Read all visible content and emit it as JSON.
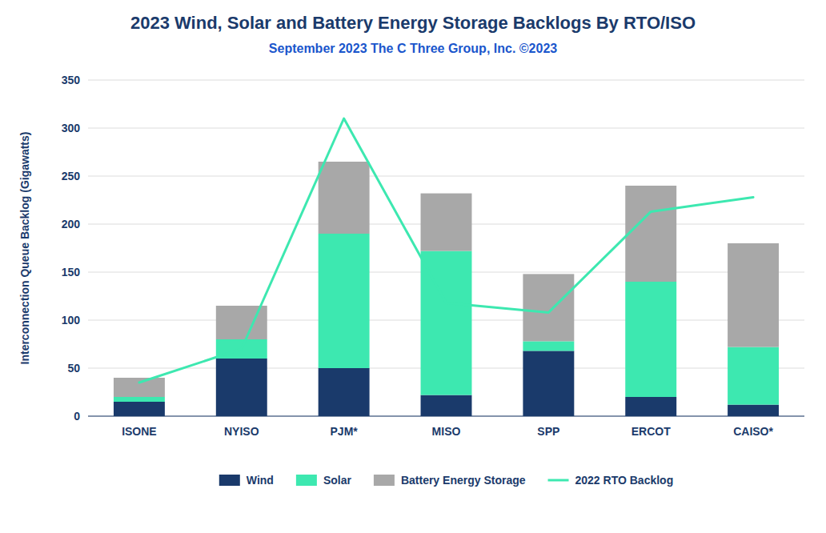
{
  "chart_data": {
    "type": "bar",
    "stacked": true,
    "title": "2023 Wind, Solar and Battery Energy Storage Backlogs By RTO/ISO",
    "subtitle": "September 2023 The C Three Group, Inc. ©2023",
    "y_label": "Interconnection Queue Backlog (Gigawatts)",
    "categories": [
      "ISONE",
      "NYISO",
      "PJM*",
      "MISO",
      "SPP",
      "ERCOT",
      "CAISO*"
    ],
    "series": [
      {
        "name": "Wind",
        "type": "bar",
        "color": "#1a3a6b",
        "values": [
          15,
          60,
          50,
          22,
          68,
          20,
          12
        ]
      },
      {
        "name": "Solar",
        "type": "bar",
        "color": "#3de8b0",
        "values": [
          5,
          20,
          140,
          150,
          10,
          120,
          60
        ]
      },
      {
        "name": "Battery Energy Storage",
        "type": "bar",
        "color": "#a8a8a8",
        "values": [
          20,
          35,
          75,
          60,
          70,
          100,
          108
        ]
      },
      {
        "name": "2022 RTO Backlog",
        "type": "line",
        "color": "#3de8b0",
        "values": [
          35,
          70,
          310,
          118,
          108,
          213,
          228
        ]
      }
    ],
    "ylim": [
      0,
      350
    ],
    "yticks": [
      0,
      50,
      100,
      150,
      200,
      250,
      300,
      350
    ],
    "grid": true,
    "legend": "bottom"
  }
}
